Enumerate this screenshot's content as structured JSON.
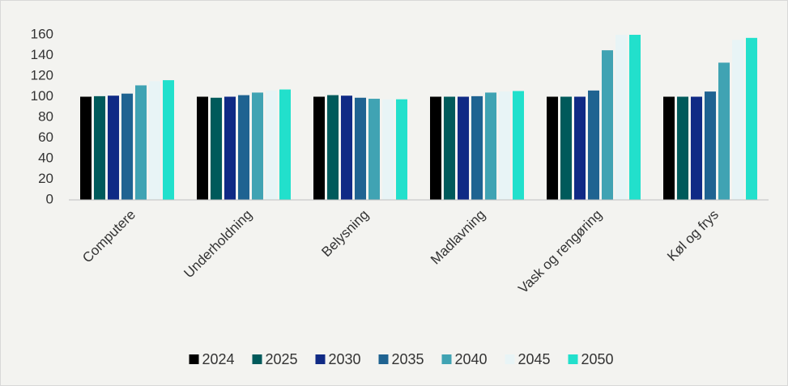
{
  "chart_data": {
    "type": "bar",
    "categories": [
      "Computere",
      "Underholdning",
      "Belysning",
      "Madlavning",
      "Vask og rengøring",
      "Køl og frys"
    ],
    "series": [
      {
        "name": "2024",
        "color": "#000000",
        "values": [
          100,
          100,
          100,
          100,
          100,
          100
        ]
      },
      {
        "name": "2025",
        "color": "#005a5b",
        "values": [
          100.5,
          99,
          101.5,
          100,
          100,
          100
        ]
      },
      {
        "name": "2030",
        "color": "#102a85",
        "values": [
          101,
          100,
          101,
          100,
          100,
          100
        ]
      },
      {
        "name": "2035",
        "color": "#1f6391",
        "values": [
          103,
          101.5,
          99,
          100.5,
          106,
          105
        ]
      },
      {
        "name": "2040",
        "color": "#40a3b3",
        "values": [
          111,
          104,
          98,
          104,
          145,
          133
        ]
      },
      {
        "name": "2045",
        "color": "#e8f4f6",
        "values": [
          115,
          106,
          97.5,
          105,
          160,
          155
        ]
      },
      {
        "name": "2050",
        "color": "#22e0cc",
        "values": [
          116,
          107,
          97.5,
          105.5,
          160,
          157
        ]
      }
    ],
    "ylim": [
      0,
      160
    ],
    "yticks": [
      0,
      20,
      40,
      60,
      80,
      100,
      120,
      140,
      160
    ],
    "grid": false,
    "legend": "bottom"
  }
}
